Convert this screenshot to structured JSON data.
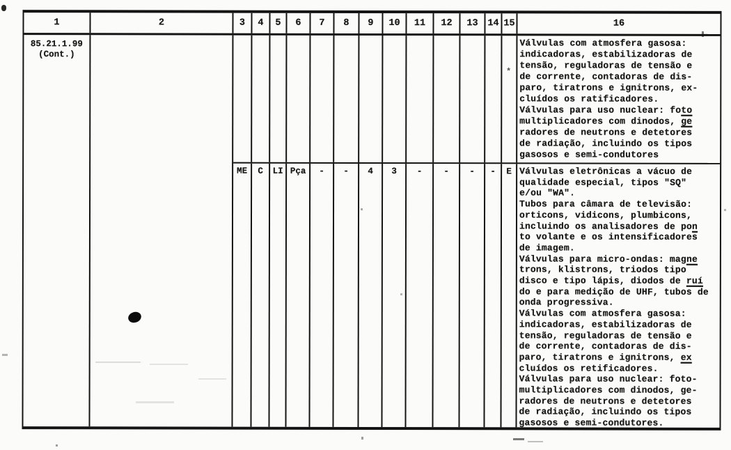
{
  "colors": {
    "paper": "#fbfbf9",
    "ink": "#1a1a1a",
    "grid_line": "#141414"
  },
  "margin_mark": "*",
  "table": {
    "header_columns": [
      "1",
      "2",
      "3",
      "4",
      "5",
      "6",
      "7",
      "8",
      "9",
      "10",
      "11",
      "12",
      "13",
      "14",
      "15",
      "16"
    ],
    "row1": {
      "code_line1": "85.21.1.99",
      "code_line2": "(Cont.)",
      "cells": [
        "",
        "",
        "",
        "",
        "",
        "",
        "",
        "",
        "",
        "",
        "",
        "",
        ""
      ],
      "description_lines": [
        "Válvulas com atmosfera gasosa:",
        "indicadoras, estabilizadoras de",
        "tensão, reguladoras de tensão e",
        "de corrente, contadoras de dis-",
        "paro, tiratrons e ignitrons, ex-",
        "cluídos os ratificadores.",
        "Válvulas para uso nuclear: fo[u]to[/u]",
        "multiplicadores com dinodos, [u]ge[/u]",
        "radores de neutrons e detetores",
        "de radiação, incluindo os tipos",
        "gasosos e semi-condutores"
      ]
    },
    "row2": {
      "cells": [
        "ME",
        "C",
        "LI",
        "Pça",
        "-",
        "-",
        "4",
        "3",
        "-",
        "-",
        "-",
        "-",
        "E"
      ],
      "description_lines": [
        "Válvulas eletrônicas a vácuo de",
        "qualidade especial, tipos \"SQ\"",
        "e/ou \"WA\".",
        "Tubos para câmara de televisão:",
        "orticons, vidicons, plumbicons,",
        "incluindo os analisadores de po[u]n[/u]",
        "to volante e os intensificadores",
        "de imagem.",
        "Válvulas para micro-ondas: mag[u]ne[/u]",
        "trons, klistrons, triodos tipo",
        "disco e tipo lápis, diodos de [u]ruí[/u]",
        "do e para medição de UHF, tubos de",
        "onda progressiva.",
        "Válvulas com atmosfera gasosa:",
        "indicadoras, estabilizadoras de",
        "tensão, reguladoras de tensão e",
        "de corrente, contadoras de dis-",
        "paro, tiratrons e ignitrons, [u]ex[/u]",
        "cluídos os retificadores.",
        "Válvulas para uso nuclear: foto-",
        "multiplicadores com dinodos, ge-",
        "radores de neutrons e detetores",
        "de radiação, incluindo os tipos",
        "gasosos e semi-condutores."
      ]
    }
  }
}
